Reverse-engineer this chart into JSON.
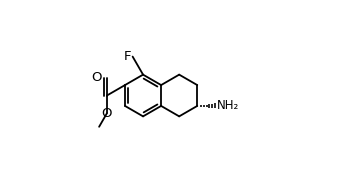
{
  "background": "#ffffff",
  "line_color": "#000000",
  "lw": 1.3,
  "font_size": 9.5,
  "figsize": [
    3.45,
    1.91
  ],
  "dpi": 100,
  "F_label": "F",
  "O_label": "O",
  "NH2_label": "NH₂"
}
